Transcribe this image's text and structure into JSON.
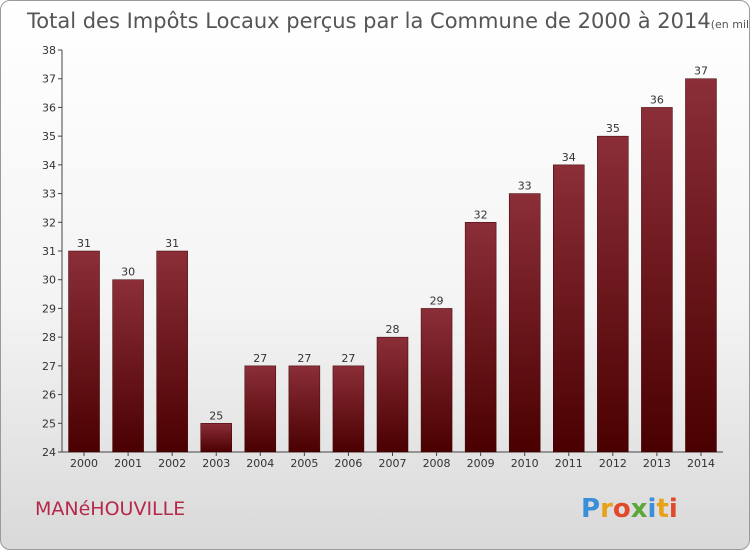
{
  "chart_data": {
    "type": "bar",
    "title": "Total des Impôts Locaux perçus par la Commune de 2000 à 2014",
    "title_unit": "(en milliers d'€)",
    "categories": [
      "2000",
      "2001",
      "2002",
      "2003",
      "2004",
      "2005",
      "2006",
      "2007",
      "2008",
      "2009",
      "2010",
      "2011",
      "2012",
      "2013",
      "2014"
    ],
    "values": [
      31,
      30,
      31,
      25,
      27,
      27,
      27,
      28,
      29,
      32,
      33,
      34,
      35,
      36,
      37
    ],
    "y_ticks": [
      "24",
      "25",
      "26",
      "27",
      "28",
      "29",
      "30",
      "31",
      "32",
      "33",
      "34",
      "35",
      "36",
      "37",
      "38"
    ],
    "ylim": [
      24,
      38
    ],
    "xlabel": "",
    "ylabel": "",
    "grid": false,
    "bar_color_top": "#8b2e38",
    "bar_color_bottom": "#4a0000"
  },
  "commune_name": "MANéHOUVILLE",
  "logo": {
    "text": "Proxiti",
    "letters": [
      "P",
      "r",
      "o",
      "x",
      "i",
      "t",
      "i"
    ],
    "colors": [
      "#3a8fd8",
      "#e8a21a",
      "#e04a2a",
      "#5aa83a",
      "#3a8fd8",
      "#e8a21a",
      "#e04a2a"
    ]
  }
}
